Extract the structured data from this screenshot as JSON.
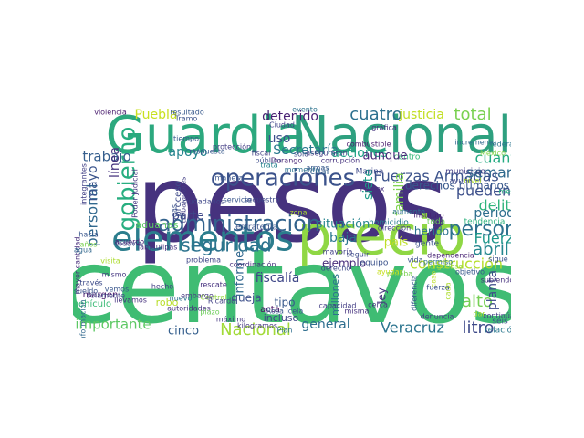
{
  "palette": [
    "#440154",
    "#472d7b",
    "#3b528b",
    "#2c728e",
    "#21918c",
    "#28ae80",
    "#5ec962",
    "#addc30",
    "#fde725"
  ],
  "words": [
    {
      "text": "pesos",
      "color": "#46327e"
    },
    {
      "text": "centavos",
      "color": "#3fbc73"
    },
    {
      "text": "Guardia",
      "color": "#2ca87e"
    },
    {
      "text": "Nacional",
      "color": "#2ea07f"
    },
    {
      "text": "precio",
      "color": "#8fd744"
    },
    {
      "text": "elementos",
      "color": "#2b7d8d"
    },
    {
      "text": "gobierno",
      "color": "#28ae80"
    },
    {
      "text": "administración",
      "color": "#33638d"
    },
    {
      "text": "operaciones",
      "color": "#3b528b"
    },
    {
      "text": "seguridad",
      "color": "#2c728e"
    },
    {
      "text": "persona",
      "color": "#2d718e"
    },
    {
      "text": "Veracruz",
      "color": "#2b748e"
    },
    {
      "text": "litro",
      "color": "#3e4a89"
    },
    {
      "text": "Nacional",
      "color": "#a2da37"
    },
    {
      "text": "abril",
      "color": "#24878e"
    },
    {
      "text": "Fuerza",
      "color": "#1f978b"
    },
    {
      "text": "construcción",
      "color": "#b5de2b"
    },
    {
      "text": "alto",
      "color": "#75d054"
    },
    {
      "text": "Fuerzas Armadas",
      "color": "#3b528b"
    },
    {
      "text": "Secretaría",
      "color": "#2a788e"
    },
    {
      "text": "acciones",
      "color": "#20a386"
    },
    {
      "text": "cuatro",
      "color": "#2d708e"
    },
    {
      "text": "total",
      "color": "#7ad151"
    },
    {
      "text": "justicia",
      "color": "#c2df23"
    },
    {
      "text": "cuanto",
      "color": "#25ab82"
    },
    {
      "text": "semana",
      "color": "#306a8e"
    },
    {
      "text": "pueden",
      "color": "#3c4f8a"
    },
    {
      "text": "delito",
      "color": "#2fb47c"
    },
    {
      "text": "periodo",
      "color": "#2e6f8e"
    },
    {
      "text": "detenido",
      "color": "#482173"
    },
    {
      "text": "trabajo",
      "color": "#355e8d"
    },
    {
      "text": "personal",
      "color": "#31688e"
    },
    {
      "text": "uso",
      "color": "#3d4e8a"
    },
    {
      "text": "apoyo",
      "color": "#25848e"
    },
    {
      "text": "Puebla",
      "color": "#c8e020"
    },
    {
      "text": "mayo",
      "color": "#3a548c"
    },
    {
      "text": "línea",
      "color": "#46337e"
    },
    {
      "text": "parte",
      "color": "#3f4889"
    },
    {
      "text": "importante",
      "color": "#5cc863"
    },
    {
      "text": "cinco",
      "color": "#355f8d"
    },
    {
      "text": "general",
      "color": "#2e6e8e"
    },
    {
      "text": "situación",
      "color": "#25838e"
    },
    {
      "text": "baja",
      "color": "#2a778e"
    },
    {
      "text": "fiscalía",
      "color": "#3f4788"
    },
    {
      "text": "familia",
      "color": "#7fd34e"
    },
    {
      "text": "siete",
      "color": "#1e9c89"
    },
    {
      "text": "planta",
      "color": "#3e4c8a"
    },
    {
      "text": "ejemplo",
      "color": "#472c7a"
    },
    {
      "text": "informe",
      "color": "#31678e"
    },
    {
      "text": "ley",
      "color": "#45337d"
    },
    {
      "text": "país",
      "color": "#bddf26"
    },
    {
      "text": "herido",
      "color": "#2c738e"
    },
    {
      "text": "gente",
      "color": "#3b518b"
    },
    {
      "text": "derechos humanos",
      "color": "#38588c"
    },
    {
      "text": "tendencia",
      "color": "#2db27d"
    },
    {
      "text": "municipio",
      "color": "#433e85"
    },
    {
      "text": "Marina",
      "color": "#3e4989"
    },
    {
      "text": "centro",
      "color": "#35b779"
    },
    {
      "text": "aunque",
      "color": "#482878"
    },
    {
      "text": "cuál",
      "color": "#355f8d"
    },
    {
      "text": "momento",
      "color": "#2c718e"
    },
    {
      "text": "homicidio",
      "color": "#287c8e"
    },
    {
      "text": "toda",
      "color": "#6ccd5a"
    },
    {
      "text": "estrategia",
      "color": "#3a538b"
    },
    {
      "text": "tipo",
      "color": "#38598c"
    },
    {
      "text": "queja",
      "color": "#3c4f8a"
    },
    {
      "text": "incluso",
      "color": "#404688"
    },
    {
      "text": "acta",
      "color": "#471063"
    },
    {
      "text": "kilogramos",
      "color": "#453581"
    },
    {
      "text": "Plan",
      "color": "#2e6e8e"
    },
    {
      "text": "millones",
      "color": "#2c718e"
    },
    {
      "text": "equipo",
      "color": "#3b528b"
    },
    {
      "text": "mayoría",
      "color": "#424086"
    },
    {
      "text": "vehículo",
      "color": "#3aba76"
    },
    {
      "text": "margen",
      "color": "#481668"
    },
    {
      "text": "robo",
      "color": "#b8de29"
    },
    {
      "text": "aduanas",
      "color": "#5cc863"
    },
    {
      "text": "proceso",
      "color": "#3e4a89"
    },
    {
      "text": "seis",
      "color": "#3b528b"
    },
    {
      "text": "relación",
      "color": "#2a788e"
    },
    {
      "text": "continúan",
      "color": "#433e85"
    },
    {
      "text": "dependencia",
      "color": "#482374"
    },
    {
      "text": "orgulloso",
      "color": "#95d840"
    },
    {
      "text": "manera",
      "color": "#3a548c"
    },
    {
      "text": "trata",
      "color": "#26828e"
    },
    {
      "text": "gráfica",
      "color": "#46337e"
    },
    {
      "text": "violencia",
      "color": "#481b6d"
    },
    {
      "text": "resultado",
      "color": "#38598c"
    },
    {
      "text": "protección",
      "color": "#433d84"
    },
    {
      "text": "Poder Judicial",
      "color": "#453882"
    },
    {
      "text": "todavía",
      "color": "#3b528b"
    },
    {
      "text": "hacia",
      "color": "#39568c"
    },
    {
      "text": "años",
      "color": "#7ad151"
    },
    {
      "text": "coordinación",
      "color": "#46317e"
    },
    {
      "text": "mes",
      "color": "#26ad81"
    },
    {
      "text": "ayuda",
      "color": "#3e4989"
    },
    {
      "text": "federal",
      "color": "#2b758e"
    },
    {
      "text": "Ciudad",
      "color": "#404588"
    },
    {
      "text": "mayor cantidad",
      "color": "#472d7b"
    },
    {
      "text": "integrantes",
      "color": "#424186"
    },
    {
      "text": "información",
      "color": "#31688e"
    },
    {
      "text": "Tamaulipas",
      "color": "#46327e"
    },
    {
      "text": "Central",
      "color": "#95d840"
    },
    {
      "text": "embargo",
      "color": "#453781"
    },
    {
      "text": "autoridades",
      "color": "#46337e"
    },
    {
      "text": "Rosa Icela",
      "color": "#38588c"
    },
    {
      "text": "denuncia",
      "color": "#433e85"
    },
    {
      "text": "dar",
      "color": "#addc30"
    },
    {
      "text": "sólo",
      "color": "#3e4a89"
    },
    {
      "text": "rescate",
      "color": "#46327e"
    },
    {
      "text": "problema",
      "color": "#3f4788"
    },
    {
      "text": "máximo",
      "color": "#453781"
    },
    {
      "text": "respuesta",
      "color": "#38598c"
    },
    {
      "text": "secuestro",
      "color": "#3e4989"
    },
    {
      "text": "Ricardo",
      "color": "#424186"
    },
    {
      "text": "permiso",
      "color": "#2c728e"
    },
    {
      "text": "subiendo",
      "color": "#46327e"
    },
    {
      "text": "caso",
      "color": "#bddf26"
    },
    {
      "text": "diferencia",
      "color": "#38598c"
    },
    {
      "text": "vida",
      "color": "#3b528b"
    },
    {
      "text": "cada",
      "color": "#addc30"
    },
    {
      "text": "Mexico",
      "color": "#86d549"
    },
    {
      "text": "público",
      "color": "#3e4c8a"
    },
    {
      "text": "fiscal",
      "color": "#423f85"
    },
    {
      "text": "Durango",
      "color": "#482475"
    },
    {
      "text": "corrupción",
      "color": "#46327e"
    },
    {
      "text": "Tramo",
      "color": "#3b528b"
    },
    {
      "text": "tiempo",
      "color": "#38598c"
    },
    {
      "text": "evento",
      "color": "#2c728e"
    },
    {
      "text": "incremento",
      "color": "#31678e"
    },
    {
      "text": "trabajadores",
      "color": "#433e85"
    },
    {
      "text": "acuerdo",
      "color": "#482475"
    },
    {
      "text": "agua",
      "color": "#31688e"
    },
    {
      "text": "sueldo",
      "color": "#3b528b"
    },
    {
      "text": "visita",
      "color": "#addc30"
    },
    {
      "text": "mismo",
      "color": "#453781"
    },
    {
      "text": "llevamos",
      "color": "#46327e"
    },
    {
      "text": "través",
      "color": "#3e4c8a"
    },
    {
      "text": "vemos",
      "color": "#39568c"
    },
    {
      "text": "solamente",
      "color": "#3f4788"
    },
    {
      "text": "hecho",
      "color": "#423f85"
    },
    {
      "text": "nuevo",
      "color": "#2d708e"
    },
    {
      "text": "gas",
      "color": "#3b528b"
    },
    {
      "text": "combustible",
      "color": "#481b6d"
    },
    {
      "text": "derecho",
      "color": "#3e4989"
    },
    {
      "text": "zona",
      "color": "#addc30"
    },
    {
      "text": "armas",
      "color": "#38598c"
    },
    {
      "text": "aseguraron",
      "color": "#433e85"
    },
    {
      "text": "Pemex",
      "color": "#46327e"
    },
    {
      "text": "fuerza",
      "color": "#3b528b"
    },
    {
      "text": "prueba",
      "color": "#7ad151"
    },
    {
      "text": "ayudar",
      "color": "#c8e020"
    },
    {
      "text": "seguir",
      "color": "#3e4c8a"
    },
    {
      "text": "aumento",
      "color": "#2c728e"
    },
    {
      "text": "cerca",
      "color": "#453781"
    },
    {
      "text": "plazo",
      "color": "#6ccd5a"
    },
    {
      "text": "servicio",
      "color": "#39568c"
    },
    {
      "text": "ciudadanos",
      "color": "#3f4788"
    },
    {
      "text": "Instituto",
      "color": "#482475"
    },
    {
      "text": "dirección",
      "color": "#423f85"
    },
    {
      "text": "nivel",
      "color": "#addc30"
    },
    {
      "text": "objetivo",
      "color": "#38598c"
    },
    {
      "text": "sigue",
      "color": "#3b528b"
    },
    {
      "text": "misma",
      "color": "#46327e"
    },
    {
      "text": "capacidad",
      "color": "#433e85"
    },
    {
      "text": "esquema",
      "color": "#3e4989"
    }
  ]
}
